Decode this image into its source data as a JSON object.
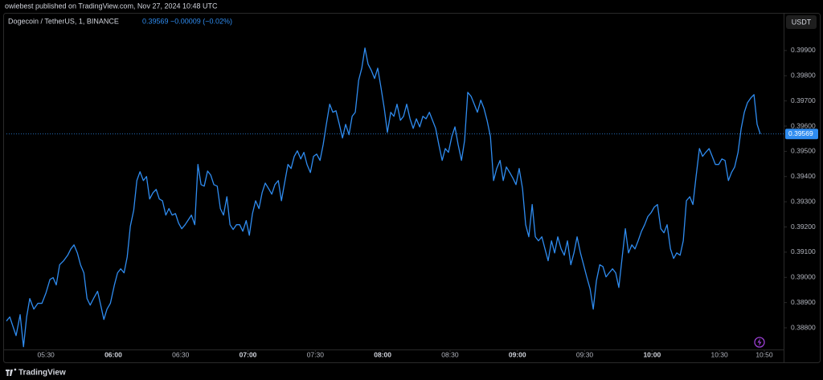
{
  "header": "owiebest published on TradingView.com, Nov 27, 2024 10:48 UTC",
  "symbol": "Dogecoin / TetherUS, 1, BINANCE",
  "last_price": 0.39569,
  "change": "−0.00009 (−0.02%)",
  "currency": "USDT",
  "footer": "TradingView",
  "chart_data": {
    "type": "line",
    "color": "#2f8cf0",
    "grid": false,
    "xlim": [
      312.4,
      658.6
    ],
    "ylim": [
      0.38714,
      0.40043
    ],
    "xticks": [
      {
        "value": 330,
        "label": "05:30"
      },
      {
        "value": 360,
        "label": "06:00"
      },
      {
        "value": 390,
        "label": "06:30"
      },
      {
        "value": 420,
        "label": "07:00"
      },
      {
        "value": 450,
        "label": "07:30"
      },
      {
        "value": 480,
        "label": "08:00"
      },
      {
        "value": 510,
        "label": "08:30"
      },
      {
        "value": 540,
        "label": "09:00"
      },
      {
        "value": 570,
        "label": "09:30"
      },
      {
        "value": 600,
        "label": "10:00"
      },
      {
        "value": 630,
        "label": "10:30"
      },
      {
        "value": 650,
        "label": "10:50"
      }
    ],
    "yticks": [
      {
        "value": 0.388,
        "label": "0.38800"
      },
      {
        "value": 0.389,
        "label": "0.38900"
      },
      {
        "value": 0.39,
        "label": "0.39000"
      },
      {
        "value": 0.391,
        "label": "0.39100"
      },
      {
        "value": 0.392,
        "label": "0.39200"
      },
      {
        "value": 0.393,
        "label": "0.39300"
      },
      {
        "value": 0.394,
        "label": "0.39400"
      },
      {
        "value": 0.395,
        "label": "0.39500"
      },
      {
        "value": 0.396,
        "label": "0.39600"
      },
      {
        "value": 0.397,
        "label": "0.39700"
      },
      {
        "value": 0.398,
        "label": "0.39800"
      },
      {
        "value": 0.399,
        "label": "0.39900"
      }
    ],
    "x": [
      312.4,
      313.9,
      315.7,
      316.7,
      318.5,
      320.0,
      321.4,
      322.8,
      324.6,
      326.4,
      328.2,
      330.0,
      331.8,
      333.2,
      334.6,
      336.1,
      337.9,
      339.7,
      341.1,
      342.5,
      344.0,
      345.4,
      346.9,
      348.3,
      349.7,
      351.2,
      353.0,
      354.4,
      355.8,
      357.2,
      358.7,
      360.5,
      361.9,
      363.3,
      364.8,
      366.2,
      367.6,
      369.1,
      370.5,
      371.9,
      373.4,
      374.8,
      376.2,
      377.7,
      379.1,
      380.5,
      381.9,
      383.4,
      384.8,
      386.2,
      387.7,
      389.1,
      390.5,
      392.0,
      393.4,
      394.8,
      396.3,
      397.7,
      399.1,
      400.5,
      402.0,
      403.4,
      404.8,
      406.3,
      407.7,
      409.1,
      410.6,
      412.0,
      413.4,
      414.9,
      416.3,
      417.7,
      419.2,
      420.6,
      422.0,
      423.4,
      424.9,
      426.3,
      427.7,
      429.2,
      430.6,
      432.0,
      433.5,
      434.9,
      436.3,
      437.8,
      439.2,
      440.6,
      442.0,
      443.5,
      444.9,
      446.3,
      447.8,
      449.2,
      450.6,
      452.1,
      453.5,
      454.9,
      456.4,
      457.8,
      459.2,
      460.7,
      462.1,
      463.5,
      465.0,
      466.4,
      467.8,
      469.3,
      470.7,
      472.1,
      473.5,
      475.0,
      476.4,
      477.8,
      479.3,
      480.7,
      482.1,
      483.6,
      485.0,
      486.4,
      487.9,
      489.3,
      490.7,
      492.2,
      493.6,
      495.0,
      496.5,
      497.9,
      499.3,
      500.8,
      502.2,
      503.6,
      505.0,
      506.5,
      507.9,
      509.3,
      510.8,
      512.2,
      513.6,
      515.1,
      516.5,
      517.9,
      519.4,
      520.8,
      522.2,
      523.7,
      525.1,
      526.5,
      528.0,
      529.4,
      530.8,
      532.3,
      533.7,
      535.1,
      536.6,
      538.0,
      539.4,
      540.8,
      542.3,
      543.7,
      545.1,
      546.6,
      548.0,
      549.4,
      550.9,
      552.3,
      553.7,
      555.2,
      556.6,
      558.0,
      559.5,
      560.9,
      562.3,
      563.8,
      565.2,
      566.6,
      568.1,
      569.5,
      570.9,
      572.4,
      573.8,
      575.2,
      576.7,
      578.1,
      579.5,
      580.9,
      582.4,
      583.8,
      585.2,
      586.7,
      588.1,
      589.5,
      591.0,
      592.4,
      593.8,
      595.3,
      596.7,
      598.1,
      599.6,
      601.0,
      602.4,
      603.9,
      605.3,
      606.7,
      608.2,
      609.6,
      611.0,
      612.5,
      613.9,
      615.3,
      616.8,
      618.2,
      619.6,
      621.1,
      622.5,
      623.9,
      625.4,
      626.8,
      628.2,
      629.7,
      631.1,
      632.5,
      634.0,
      635.4,
      636.8,
      638.3,
      639.7,
      641.1,
      642.5,
      644.0,
      645.4,
      646.8,
      648.2
    ],
    "values": [
      0.38827,
      0.38843,
      0.38795,
      0.38769,
      0.38852,
      0.38725,
      0.38843,
      0.38916,
      0.38874,
      0.38897,
      0.38897,
      0.38938,
      0.38992,
      0.38999,
      0.3897,
      0.3905,
      0.39066,
      0.39088,
      0.39113,
      0.39129,
      0.39097,
      0.3905,
      0.39018,
      0.38916,
      0.3889,
      0.38916,
      0.38945,
      0.3889,
      0.38833,
      0.38874,
      0.38897,
      0.3897,
      0.39018,
      0.39034,
      0.39018,
      0.39081,
      0.39203,
      0.39266,
      0.39384,
      0.39419,
      0.39384,
      0.394,
      0.39311,
      0.39336,
      0.39349,
      0.39311,
      0.39304,
      0.39247,
      0.39273,
      0.39247,
      0.39253,
      0.39215,
      0.39193,
      0.39209,
      0.39228,
      0.39247,
      0.39209,
      0.39448,
      0.39368,
      0.39362,
      0.39422,
      0.39406,
      0.39368,
      0.39362,
      0.39273,
      0.39247,
      0.3932,
      0.39209,
      0.3919,
      0.39209,
      0.39209,
      0.39183,
      0.39225,
      0.39167,
      0.39253,
      0.39304,
      0.39273,
      0.39336,
      0.39374,
      0.39352,
      0.3933,
      0.39368,
      0.39384,
      0.39304,
      0.39374,
      0.39448,
      0.39432,
      0.3948,
      0.39502,
      0.3947,
      0.39496,
      0.39448,
      0.39416,
      0.3948,
      0.39489,
      0.39464,
      0.39527,
      0.39607,
      0.39687,
      0.39655,
      0.39661,
      0.39607,
      0.39553,
      0.39607,
      0.39566,
      0.39639,
      0.39655,
      0.39782,
      0.3983,
      0.3991,
      0.39846,
      0.3982,
      0.39789,
      0.3983,
      0.3975,
      0.39671,
      0.39575,
      0.39655,
      0.39639,
      0.39687,
      0.39623,
      0.39639,
      0.39687,
      0.39629,
      0.39591,
      0.39629,
      0.39597,
      0.39639,
      0.39629,
      0.39655,
      0.39623,
      0.39591,
      0.39527,
      0.39464,
      0.39511,
      0.39496,
      0.39559,
      0.39597,
      0.39527,
      0.39464,
      0.39543,
      0.39734,
      0.39718,
      0.39687,
      0.39655,
      0.39703,
      0.39671,
      0.39623,
      0.39559,
      0.39384,
      0.39432,
      0.39464,
      0.39384,
      0.39438,
      0.39416,
      0.39394,
      0.39368,
      0.39432,
      0.39352,
      0.39209,
      0.39161,
      0.39289,
      0.39161,
      0.39145,
      0.39161,
      0.39113,
      0.39066,
      0.39145,
      0.39097,
      0.39161,
      0.39113,
      0.39088,
      0.39145,
      0.3905,
      0.39097,
      0.39161,
      0.39097,
      0.3905,
      0.39002,
      0.38954,
      0.38874,
      0.38986,
      0.3905,
      0.39043,
      0.39002,
      0.39018,
      0.39034,
      0.39018,
      0.3896,
      0.39081,
      0.39193,
      0.39097,
      0.39129,
      0.39113,
      0.39145,
      0.39183,
      0.39209,
      0.39241,
      0.39257,
      0.39279,
      0.39289,
      0.39193,
      0.39177,
      0.39209,
      0.39113,
      0.39075,
      0.39097,
      0.39088,
      0.39145,
      0.39304,
      0.3932,
      0.39289,
      0.394,
      0.39511,
      0.3948,
      0.39496,
      0.39511,
      0.3948,
      0.39448,
      0.39448,
      0.3947,
      0.39464,
      0.39384,
      0.39416,
      0.39438,
      0.39496,
      0.39591,
      0.39655,
      0.39693,
      0.39712,
      0.39725,
      0.39607,
      0.39569
    ]
  }
}
